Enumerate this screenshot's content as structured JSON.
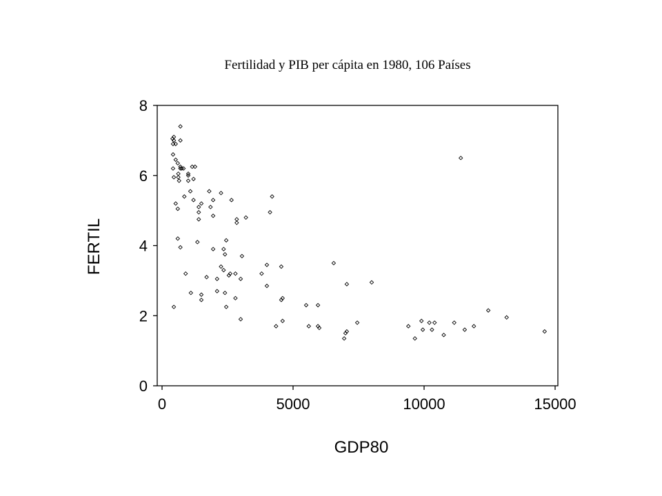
{
  "chart_data": {
    "type": "scatter",
    "title": "Fertilidad y PIB per cápita en 1980, 106 Países",
    "xlabel": "GDP80",
    "ylabel": "FERTIL",
    "xlim": [
      0,
      15000
    ],
    "ylim": [
      0,
      8
    ],
    "xticks": [
      0,
      5000,
      10000,
      15000
    ],
    "yticks": [
      0,
      2,
      4,
      6,
      8
    ],
    "xtick_labels": [
      "0",
      "5000",
      "10000",
      "15000"
    ],
    "ytick_labels": [
      "0",
      "2",
      "4",
      "6",
      "8"
    ],
    "grid": false,
    "legend": "none",
    "marker": "diamond-open",
    "points": [
      [
        400,
        7.05
      ],
      [
        450,
        7.1
      ],
      [
        420,
        6.9
      ],
      [
        520,
        6.9
      ],
      [
        700,
        7.4
      ],
      [
        700,
        7.0
      ],
      [
        420,
        6.6
      ],
      [
        520,
        6.45
      ],
      [
        600,
        6.35
      ],
      [
        420,
        6.2
      ],
      [
        700,
        6.25
      ],
      [
        750,
        6.2
      ],
      [
        820,
        6.2
      ],
      [
        1150,
        6.25
      ],
      [
        1260,
        6.25
      ],
      [
        620,
        6.05
      ],
      [
        1000,
        6.05
      ],
      [
        450,
        5.95
      ],
      [
        620,
        5.95
      ],
      [
        1200,
        5.9
      ],
      [
        650,
        5.85
      ],
      [
        1000,
        5.85
      ],
      [
        1080,
        5.55
      ],
      [
        1800,
        5.55
      ],
      [
        2250,
        5.5
      ],
      [
        850,
        5.4
      ],
      [
        1200,
        5.3
      ],
      [
        2650,
        5.3
      ],
      [
        4200,
        5.4
      ],
      [
        520,
        5.2
      ],
      [
        1500,
        5.2
      ],
      [
        1400,
        5.1
      ],
      [
        1850,
        5.1
      ],
      [
        1950,
        5.3
      ],
      [
        600,
        5.05
      ],
      [
        4120,
        4.95
      ],
      [
        1400,
        4.95
      ],
      [
        1950,
        4.85
      ],
      [
        3200,
        4.8
      ],
      [
        1400,
        4.75
      ],
      [
        2850,
        4.75
      ],
      [
        2850,
        4.65
      ],
      [
        600,
        4.2
      ],
      [
        2450,
        4.15
      ],
      [
        1350,
        4.1
      ],
      [
        700,
        3.95
      ],
      [
        1950,
        3.9
      ],
      [
        2350,
        3.9
      ],
      [
        2400,
        3.75
      ],
      [
        3050,
        3.7
      ],
      [
        6550,
        3.5
      ],
      [
        4000,
        3.45
      ],
      [
        4550,
        3.4
      ],
      [
        2250,
        3.4
      ],
      [
        2350,
        3.3
      ],
      [
        2600,
        3.2
      ],
      [
        2550,
        3.15
      ],
      [
        2800,
        3.2
      ],
      [
        3800,
        3.2
      ],
      [
        900,
        3.2
      ],
      [
        1700,
        3.1
      ],
      [
        2100,
        3.05
      ],
      [
        3000,
        3.05
      ],
      [
        7050,
        2.9
      ],
      [
        8000,
        2.95
      ],
      [
        4000,
        2.85
      ],
      [
        2100,
        2.7
      ],
      [
        2400,
        2.65
      ],
      [
        1100,
        2.65
      ],
      [
        1500,
        2.6
      ],
      [
        1500,
        2.45
      ],
      [
        2800,
        2.5
      ],
      [
        4600,
        2.5
      ],
      [
        4550,
        2.45
      ],
      [
        450,
        2.25
      ],
      [
        2450,
        2.25
      ],
      [
        5500,
        2.3
      ],
      [
        5950,
        2.3
      ],
      [
        12450,
        2.15
      ],
      [
        3000,
        1.9
      ],
      [
        13150,
        1.95
      ],
      [
        4600,
        1.85
      ],
      [
        7450,
        1.8
      ],
      [
        9900,
        1.85
      ],
      [
        10200,
        1.8
      ],
      [
        10400,
        1.8
      ],
      [
        11150,
        1.8
      ],
      [
        4350,
        1.7
      ],
      [
        5600,
        1.7
      ],
      [
        5950,
        1.7
      ],
      [
        6000,
        1.65
      ],
      [
        9400,
        1.7
      ],
      [
        11900,
        1.7
      ],
      [
        7050,
        1.55
      ],
      [
        7000,
        1.5
      ],
      [
        9950,
        1.6
      ],
      [
        10300,
        1.6
      ],
      [
        11550,
        1.6
      ],
      [
        10750,
        1.45
      ],
      [
        14600,
        1.55
      ],
      [
        6950,
        1.35
      ],
      [
        9650,
        1.35
      ],
      [
        11400,
        6.5
      ],
      [
        450,
        7.0
      ],
      [
        1000,
        6.0
      ],
      [
        700,
        6.2
      ]
    ]
  }
}
